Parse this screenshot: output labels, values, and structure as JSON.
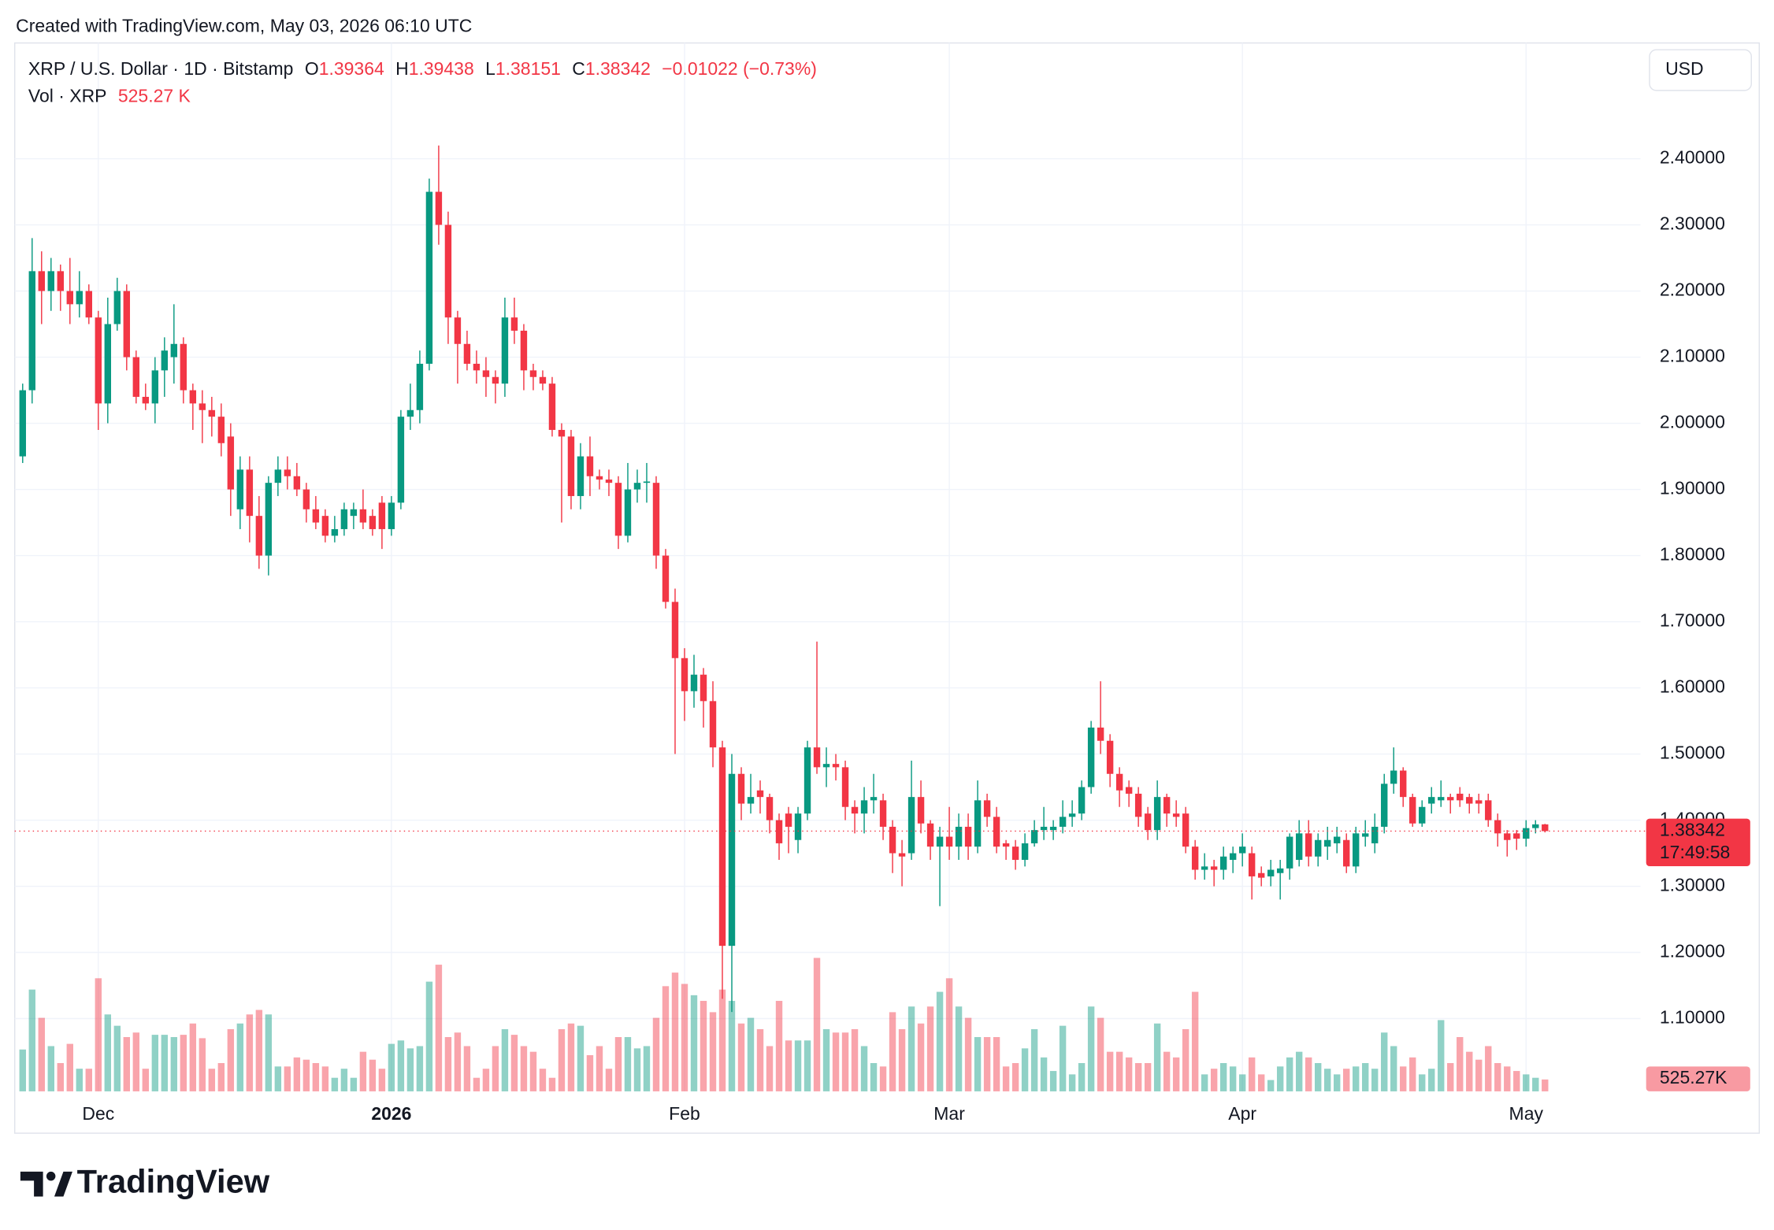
{
  "created_with": "Created with TradingView.com, May 03, 2026 06:10 UTC",
  "currency_button": "USD",
  "logo": "TradingView",
  "chart_data": {
    "type": "candlestick",
    "legend": {
      "symbol": "XRP / U.S. Dollar · 1D · Bitstamp",
      "fields": [
        {
          "key": "O",
          "value": "1.39364"
        },
        {
          "key": "H",
          "value": "1.39438"
        },
        {
          "key": "L",
          "value": "1.38151"
        },
        {
          "key": "C",
          "value": "1.38342"
        }
      ],
      "change": "−0.01022 (−0.73%)",
      "volume_title": "Vol · XRP",
      "volume_value": "525.27 K"
    },
    "last_price_label": "1.38342",
    "countdown": "17:49:58",
    "last_volume_label": "525.27K",
    "up_color": "#089981",
    "down_color": "#f23645",
    "grid": true,
    "xlim": [
      -0.84,
      171.1
    ],
    "xticks": [
      {
        "value": 8,
        "label": "Dec"
      },
      {
        "value": 39,
        "label": "2026"
      },
      {
        "value": 70,
        "label": "Feb"
      },
      {
        "value": 98,
        "label": "Mar"
      },
      {
        "value": 129,
        "label": "Apr"
      },
      {
        "value": 159,
        "label": "May"
      }
    ],
    "ylim": [
      0.99,
      2.575
    ],
    "yticks": [
      {
        "value": 1.1,
        "label": "1.10000"
      },
      {
        "value": 1.2,
        "label": "1.20000"
      },
      {
        "value": 1.3,
        "label": "1.30000"
      },
      {
        "value": 1.4,
        "label": "1.40000"
      },
      {
        "value": 1.5,
        "label": "1.50000"
      },
      {
        "value": 1.6,
        "label": "1.60000"
      },
      {
        "value": 1.7,
        "label": "1.70000"
      },
      {
        "value": 1.8,
        "label": "1.80000"
      },
      {
        "value": 1.9,
        "label": "1.90000"
      },
      {
        "value": 2.0,
        "label": "2.00000"
      },
      {
        "value": 2.1,
        "label": "2.10000"
      },
      {
        "value": 2.2,
        "label": "2.20000"
      },
      {
        "value": 2.3,
        "label": "2.30000"
      },
      {
        "value": 2.4,
        "label": "2.40000"
      }
    ],
    "volume_ylim": [
      0,
      46350000
    ],
    "open": [
      1.95,
      2.05,
      2.23,
      2.2,
      2.23,
      2.2,
      2.18,
      2.2,
      2.16,
      2.03,
      2.15,
      2.2,
      2.1,
      2.04,
      2.03,
      2.08,
      2.1,
      2.12,
      2.05,
      2.03,
      2.02,
      2.01,
      1.98,
      1.87,
      1.93,
      1.86,
      1.8,
      1.91,
      1.93,
      1.92,
      1.9,
      1.87,
      1.86,
      1.83,
      1.84,
      1.86,
      1.87,
      1.86,
      1.88,
      1.84,
      1.88,
      2.01,
      2.02,
      2.09,
      2.35,
      2.3,
      2.16,
      2.12,
      2.09,
      2.08,
      2.07,
      2.06,
      2.16,
      2.14,
      2.08,
      2.07,
      2.06,
      1.99,
      1.98,
      1.89,
      1.95,
      1.92,
      1.915,
      1.91,
      1.83,
      1.9,
      1.91,
      1.91,
      1.8,
      1.73,
      1.645,
      1.595,
      1.62,
      1.58,
      1.51,
      1.21,
      1.47,
      1.425,
      1.445,
      1.435,
      1.4,
      1.41,
      1.37,
      1.41,
      1.51,
      1.48,
      1.485,
      1.48,
      1.42,
      1.41,
      1.43,
      1.43,
      1.39,
      1.35,
      1.35,
      1.435,
      1.395,
      1.36,
      1.375,
      1.36,
      1.39,
      1.36,
      1.43,
      1.405,
      1.365,
      1.36,
      1.34,
      1.365,
      1.385,
      1.385,
      1.39,
      1.405,
      1.41,
      1.45,
      1.54,
      1.52,
      1.47,
      1.45,
      1.44,
      1.41,
      1.385,
      1.435,
      1.41,
      1.41,
      1.36,
      1.325,
      1.33,
      1.325,
      1.34,
      1.35,
      1.35,
      1.32,
      1.315,
      1.32,
      1.327,
      1.34,
      1.38,
      1.345,
      1.36,
      1.365,
      1.37,
      1.33,
      1.375,
      1.365,
      1.39,
      1.455,
      1.475,
      1.435,
      1.395,
      1.425,
      1.43,
      1.435,
      1.44,
      1.435,
      1.43,
      1.43,
      1.4,
      1.38,
      1.38,
      1.372,
      1.388,
      1.39364
    ],
    "high": [
      2.06,
      2.28,
      2.26,
      2.25,
      2.24,
      2.25,
      2.23,
      2.21,
      2.17,
      2.19,
      2.22,
      2.21,
      2.11,
      2.06,
      2.1,
      2.13,
      2.18,
      2.13,
      2.06,
      2.05,
      2.04,
      2.03,
      2.0,
      1.95,
      1.95,
      1.89,
      1.92,
      1.95,
      1.95,
      1.94,
      1.91,
      1.89,
      1.87,
      1.86,
      1.88,
      1.88,
      1.9,
      1.87,
      1.89,
      1.89,
      2.02,
      2.06,
      2.11,
      2.37,
      2.42,
      2.32,
      2.17,
      2.14,
      2.11,
      2.1,
      2.08,
      2.19,
      2.19,
      2.15,
      2.09,
      2.08,
      2.07,
      2.0,
      1.99,
      1.97,
      1.98,
      1.93,
      1.93,
      1.92,
      1.94,
      1.93,
      1.94,
      1.92,
      1.81,
      1.75,
      1.66,
      1.65,
      1.63,
      1.61,
      1.52,
      1.5,
      1.48,
      1.47,
      1.46,
      1.44,
      1.41,
      1.42,
      1.42,
      1.52,
      1.67,
      1.51,
      1.5,
      1.49,
      1.43,
      1.45,
      1.47,
      1.44,
      1.4,
      1.37,
      1.49,
      1.46,
      1.4,
      1.39,
      1.42,
      1.41,
      1.41,
      1.46,
      1.44,
      1.42,
      1.37,
      1.37,
      1.38,
      1.4,
      1.42,
      1.4,
      1.43,
      1.43,
      1.46,
      1.55,
      1.61,
      1.53,
      1.48,
      1.46,
      1.45,
      1.42,
      1.46,
      1.44,
      1.43,
      1.42,
      1.37,
      1.35,
      1.34,
      1.36,
      1.36,
      1.38,
      1.36,
      1.33,
      1.34,
      1.34,
      1.38,
      1.4,
      1.4,
      1.38,
      1.39,
      1.39,
      1.38,
      1.39,
      1.4,
      1.41,
      1.47,
      1.51,
      1.48,
      1.44,
      1.43,
      1.45,
      1.46,
      1.44,
      1.45,
      1.44,
      1.44,
      1.44,
      1.41,
      1.385,
      1.385,
      1.4,
      1.4,
      1.39438
    ],
    "low": [
      1.94,
      2.03,
      2.15,
      2.17,
      2.17,
      2.15,
      2.16,
      2.15,
      1.99,
      2.0,
      2.14,
      2.08,
      2.03,
      2.02,
      2.0,
      2.04,
      2.06,
      2.03,
      1.99,
      1.97,
      1.98,
      1.95,
      1.86,
      1.84,
      1.82,
      1.78,
      1.77,
      1.89,
      1.9,
      1.89,
      1.85,
      1.84,
      1.82,
      1.82,
      1.83,
      1.84,
      1.84,
      1.83,
      1.81,
      1.83,
      1.87,
      1.99,
      2.0,
      2.08,
      2.27,
      2.12,
      2.06,
      2.08,
      2.06,
      2.04,
      2.03,
      2.04,
      2.12,
      2.05,
      2.05,
      2.05,
      1.98,
      1.85,
      1.87,
      1.87,
      1.89,
      1.9,
      1.89,
      1.81,
      1.82,
      1.88,
      1.88,
      1.78,
      1.72,
      1.5,
      1.55,
      1.57,
      1.54,
      1.48,
      1.13,
      1.11,
      1.4,
      1.41,
      1.41,
      1.38,
      1.34,
      1.35,
      1.35,
      1.4,
      1.47,
      1.45,
      1.46,
      1.4,
      1.38,
      1.38,
      1.41,
      1.37,
      1.32,
      1.3,
      1.34,
      1.38,
      1.34,
      1.27,
      1.34,
      1.34,
      1.34,
      1.35,
      1.39,
      1.35,
      1.34,
      1.325,
      1.33,
      1.36,
      1.37,
      1.37,
      1.38,
      1.39,
      1.4,
      1.44,
      1.5,
      1.45,
      1.42,
      1.42,
      1.39,
      1.37,
      1.37,
      1.39,
      1.39,
      1.35,
      1.31,
      1.31,
      1.3,
      1.31,
      1.32,
      1.33,
      1.28,
      1.3,
      1.3,
      1.28,
      1.31,
      1.33,
      1.33,
      1.33,
      1.34,
      1.35,
      1.32,
      1.32,
      1.36,
      1.35,
      1.38,
      1.44,
      1.42,
      1.39,
      1.39,
      1.41,
      1.42,
      1.41,
      1.42,
      1.41,
      1.41,
      1.39,
      1.36,
      1.345,
      1.355,
      1.36,
      1.38,
      1.38151
    ],
    "close": [
      2.05,
      2.23,
      2.2,
      2.23,
      2.2,
      2.18,
      2.2,
      2.16,
      2.03,
      2.15,
      2.2,
      2.1,
      2.04,
      2.03,
      2.08,
      2.11,
      2.12,
      2.05,
      2.03,
      2.02,
      2.01,
      1.97,
      1.9,
      1.93,
      1.86,
      1.8,
      1.91,
      1.93,
      1.92,
      1.9,
      1.87,
      1.85,
      1.83,
      1.84,
      1.87,
      1.87,
      1.85,
      1.84,
      1.84,
      1.88,
      2.01,
      2.02,
      2.09,
      2.35,
      2.3,
      2.16,
      2.12,
      2.09,
      2.08,
      2.07,
      2.06,
      2.16,
      2.14,
      2.08,
      2.07,
      2.06,
      1.99,
      1.98,
      1.89,
      1.95,
      1.92,
      1.915,
      1.91,
      1.83,
      1.9,
      1.91,
      1.912,
      1.8,
      1.73,
      1.645,
      1.595,
      1.62,
      1.58,
      1.51,
      1.21,
      1.47,
      1.425,
      1.435,
      1.435,
      1.4,
      1.365,
      1.39,
      1.41,
      1.51,
      1.48,
      1.485,
      1.48,
      1.42,
      1.41,
      1.43,
      1.435,
      1.39,
      1.35,
      1.345,
      1.435,
      1.395,
      1.36,
      1.375,
      1.36,
      1.39,
      1.36,
      1.43,
      1.405,
      1.36,
      1.36,
      1.34,
      1.365,
      1.385,
      1.39,
      1.39,
      1.405,
      1.41,
      1.45,
      1.54,
      1.52,
      1.47,
      1.445,
      1.44,
      1.405,
      1.385,
      1.435,
      1.41,
      1.405,
      1.36,
      1.325,
      1.33,
      1.325,
      1.345,
      1.35,
      1.36,
      1.315,
      1.313,
      1.325,
      1.327,
      1.375,
      1.38,
      1.345,
      1.37,
      1.37,
      1.375,
      1.33,
      1.38,
      1.38,
      1.39,
      1.455,
      1.475,
      1.435,
      1.395,
      1.42,
      1.435,
      1.435,
      1.43,
      1.43,
      1.425,
      1.425,
      1.4,
      1.38,
      1.37,
      1.372,
      1.388,
      1.39364,
      1.38342
    ],
    "volume": [
      1850000,
      4500000,
      3250000,
      2000000,
      1250000,
      2100000,
      1000000,
      1000000,
      5000000,
      3400000,
      2900000,
      2400000,
      2600000,
      1000000,
      2500000,
      2500000,
      2400000,
      2500000,
      3000000,
      2350000,
      1000000,
      1250000,
      2750000,
      3000000,
      3400000,
      3600000,
      3400000,
      1100000,
      1100000,
      1500000,
      1400000,
      1250000,
      1100000,
      600000,
      1000000,
      600000,
      1750000,
      1400000,
      1000000,
      2100000,
      2250000,
      1900000,
      2000000,
      4850000,
      5600000,
      2400000,
      2600000,
      2000000,
      600000,
      1000000,
      2000000,
      2750000,
      2500000,
      2000000,
      1750000,
      1000000,
      600000,
      2750000,
      3000000,
      2900000,
      1600000,
      2000000,
      1000000,
      2400000,
      2400000,
      1900000,
      2000000,
      3250000,
      4650000,
      5250000,
      4750000,
      4250000,
      4000000,
      3500000,
      4500000,
      4000000,
      3000000,
      3250000,
      2750000,
      2000000,
      4000000,
      2250000,
      2250000,
      2250000,
      5900000,
      2750000,
      2600000,
      2600000,
      2750000,
      2000000,
      1250000,
      1100000,
      3500000,
      2750000,
      3750000,
      3000000,
      3750000,
      4400000,
      5000000,
      3750000,
      3250000,
      2400000,
      2400000,
      2400000,
      1100000,
      1250000,
      1900000,
      2750000,
      1500000,
      900000,
      2900000,
      750000,
      1250000,
      3750000,
      3250000,
      1750000,
      1750000,
      1500000,
      1250000,
      1250000,
      3000000,
      1750000,
      1500000,
      2750000,
      4400000,
      750000,
      1000000,
      1250000,
      1100000,
      750000,
      1500000,
      750000,
      500000,
      1100000,
      1500000,
      1750000,
      1500000,
      1250000,
      1000000,
      750000,
      1000000,
      1100000,
      1250000,
      1000000,
      2600000,
      2000000,
      1100000,
      1500000,
      750000,
      1000000,
      3150000,
      1250000,
      2400000,
      1750000,
      1400000,
      2000000,
      1250000,
      1100000,
      900000,
      750000,
      600000,
      525270
    ]
  }
}
